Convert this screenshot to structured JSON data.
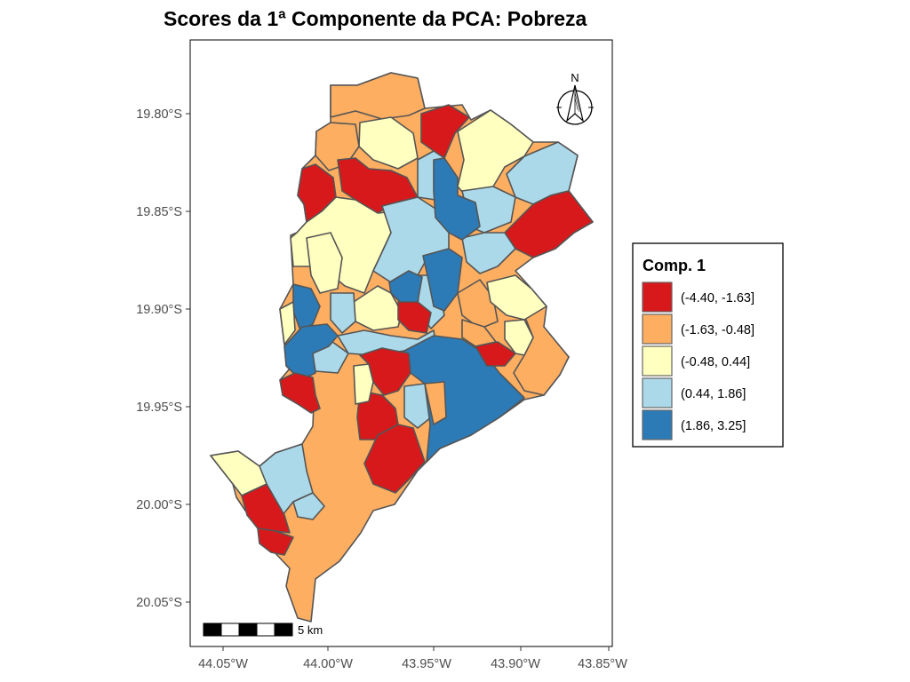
{
  "title": "Scores da 1ª Componente da PCA: Pobreza",
  "axes": {
    "y_ticks": [
      "19.80°S",
      "19.85°S",
      "19.90°S",
      "19.95°S",
      "20.00°S",
      "20.05°S"
    ],
    "x_ticks": [
      "44.05°W",
      "44.00°W",
      "43.95°W",
      "43.90°W",
      "43.85°W"
    ]
  },
  "legend": {
    "title": "Comp. 1",
    "classes": [
      {
        "label": "(-4.40, -1.63]",
        "color": "#d7191c"
      },
      {
        "label": "(-1.63, -0.48]",
        "color": "#fdae61"
      },
      {
        "label": "(-0.48, 0.44]",
        "color": "#ffffbf"
      },
      {
        "label": "(0.44, 1.86]",
        "color": "#abd9e9"
      },
      {
        "label": "(1.86, 3.25]",
        "color": "#2c7bb6"
      }
    ]
  },
  "scale_bar": {
    "label": "5 km"
  },
  "north_arrow": {
    "label": "N"
  }
}
